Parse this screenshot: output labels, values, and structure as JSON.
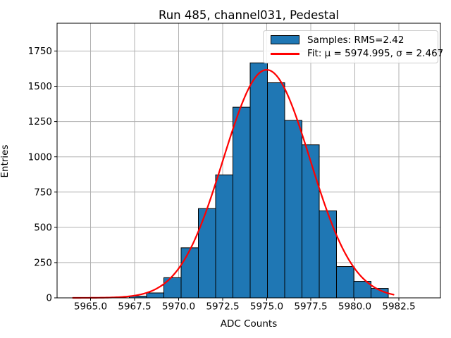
{
  "chart_data": {
    "type": "bar",
    "subtype": "histogram-with-gaussian-fit",
    "title": "Run 485, channel031, Pedestal",
    "xlabel": "ADC Counts",
    "ylabel": "Entries",
    "xlim": [
      5963.1,
      5984.86
    ],
    "ylim": [
      0,
      1947
    ],
    "grid": true,
    "grid_color": "#b0b0b0",
    "bar_color": "#1f77b4",
    "bar_edge_color": "#000000",
    "bins": {
      "start": 5967.2,
      "width": 0.98,
      "counts": [
        12,
        35,
        143,
        355,
        633,
        872,
        1352,
        1666,
        1525,
        1258,
        1085,
        617,
        222,
        117,
        67
      ]
    },
    "fit": {
      "mu": 5974.995,
      "sigma": 2.467,
      "amplitude": 1617,
      "x_min": 5964.0,
      "x_max": 5982.2,
      "color": "#ff0000",
      "line_width": 2.2
    },
    "x_ticks": [
      {
        "value": 5965.0,
        "label": "5965.0"
      },
      {
        "value": 5967.5,
        "label": "5967.5"
      },
      {
        "value": 5970.0,
        "label": "5970.0"
      },
      {
        "value": 5972.5,
        "label": "5972.5"
      },
      {
        "value": 5975.0,
        "label": "5975.0"
      },
      {
        "value": 5977.5,
        "label": "5977.5"
      },
      {
        "value": 5980.0,
        "label": "5980.0"
      },
      {
        "value": 5982.5,
        "label": "5982.5"
      }
    ],
    "y_ticks": [
      {
        "value": 0,
        "label": "0"
      },
      {
        "value": 250,
        "label": "250"
      },
      {
        "value": 500,
        "label": "500"
      },
      {
        "value": 750,
        "label": "750"
      },
      {
        "value": 1000,
        "label": "1000"
      },
      {
        "value": 1250,
        "label": "1250"
      },
      {
        "value": 1500,
        "label": "1500"
      },
      {
        "value": 1750,
        "label": "1750"
      }
    ],
    "legend": [
      {
        "label": "Samples: RMS=2.42",
        "type": "patch",
        "color": "#1f77b4"
      },
      {
        "label": "Fit: μ = 5974.995, σ = 2.467",
        "type": "line",
        "color": "#ff0000"
      }
    ]
  }
}
